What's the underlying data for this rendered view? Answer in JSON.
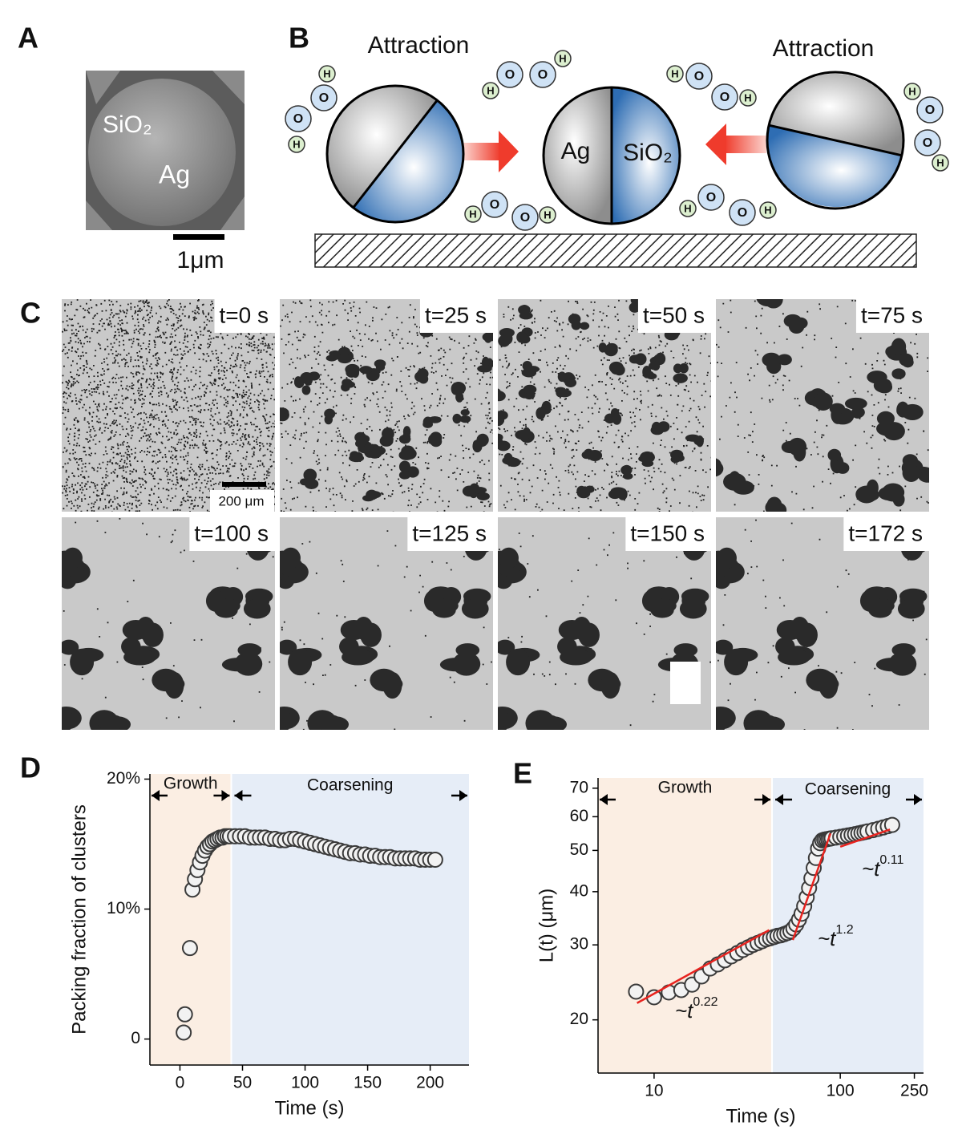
{
  "panel_labels": [
    "A",
    "B",
    "C",
    "D",
    "E"
  ],
  "panel_a": {
    "labels": [
      "SiO₂",
      "Ag"
    ],
    "scale_bar": "1μm"
  },
  "panel_b": {
    "attraction": [
      "Attraction",
      "Attraction"
    ],
    "particle_labels": [
      "Ag",
      "SiO₂"
    ],
    "atoms": {
      "oxygen": "O",
      "hydrogen": "H"
    }
  },
  "panel_c": {
    "times": [
      "t=0 s",
      "t=25 s",
      "t=50 s",
      "t=75 s",
      "t=100 s",
      "t=125 s",
      "t=150 s",
      "t=172 s"
    ],
    "scale_bar": "200 μm"
  },
  "chart_data": [
    {
      "type": "scatter",
      "y_label": "Packing fraction of clusters",
      "x_label": "Time (s)",
      "x": [
        3,
        4,
        8,
        10,
        12,
        14,
        16,
        18,
        20,
        22,
        24,
        26,
        28,
        30,
        32,
        34,
        36,
        38,
        40,
        44,
        48,
        52,
        56,
        60,
        64,
        68,
        72,
        76,
        80,
        84,
        88,
        92,
        96,
        100,
        104,
        108,
        112,
        116,
        120,
        124,
        128,
        132,
        136,
        140,
        144,
        148,
        152,
        156,
        160,
        164,
        168,
        172,
        176,
        180,
        184,
        188,
        192,
        196,
        200,
        204
      ],
      "values": [
        0.5,
        1.9,
        7.0,
        11.5,
        12.3,
        13.0,
        13.6,
        14.1,
        14.5,
        14.8,
        15.0,
        15.2,
        15.3,
        15.4,
        15.5,
        15.5,
        15.6,
        15.6,
        15.6,
        15.6,
        15.6,
        15.6,
        15.5,
        15.5,
        15.5,
        15.5,
        15.4,
        15.4,
        15.3,
        15.3,
        15.4,
        15.4,
        15.3,
        15.2,
        15.1,
        15.0,
        14.9,
        14.8,
        14.7,
        14.6,
        14.5,
        14.4,
        14.3,
        14.3,
        14.2,
        14.2,
        14.1,
        14.1,
        14.0,
        14.0,
        14.0,
        13.9,
        13.9,
        13.9,
        13.9,
        13.9,
        13.8,
        13.8,
        13.8,
        13.8
      ],
      "color": "#3a3a3a",
      "xlim": [
        -24,
        231
      ],
      "ylim": [
        -2,
        20.4
      ],
      "xticks": [
        0,
        50,
        100,
        150,
        200
      ],
      "yticks": [
        0,
        {
          "value": 10,
          "label": "10%"
        },
        {
          "value": 20,
          "label": "20%"
        }
      ],
      "regions": [
        {
          "label": "Growth",
          "color": "#fbeee3"
        },
        {
          "label": "Coarsening",
          "color": "#e6edf7"
        }
      ],
      "boundary": 41
    },
    {
      "type": "scatter",
      "y_label": "L(t) (μm)",
      "x_label": "Time (s)",
      "xscale": "log",
      "yscale": "log",
      "x": [
        8,
        10,
        12,
        14,
        16,
        18,
        20,
        22,
        24,
        26,
        28,
        30,
        32,
        34,
        36,
        38,
        40,
        42,
        44,
        46,
        48,
        50,
        52,
        54,
        56,
        58,
        60,
        62,
        64,
        66,
        68,
        70,
        72,
        74,
        76,
        78,
        80,
        82,
        84,
        86,
        88,
        90,
        95,
        100,
        105,
        110,
        115,
        120,
        125,
        130,
        135,
        140,
        150,
        160,
        170,
        180,
        190
      ],
      "values": [
        23.3,
        22.6,
        23.2,
        23.5,
        24.2,
        25.3,
        26.4,
        27,
        27.6,
        28.2,
        28.7,
        29.2,
        29.6,
        30,
        30.3,
        30.6,
        30.9,
        31.1,
        31.3,
        31.5,
        31.6,
        31.8,
        32,
        32.3,
        32.8,
        33.5,
        34.4,
        35.5,
        37,
        38.8,
        40.8,
        43,
        45.5,
        48,
        50.5,
        52,
        52.8,
        53,
        53.1,
        53.2,
        53.3,
        53.4,
        53.6,
        53.8,
        54,
        54.2,
        54.4,
        54.6,
        54.8,
        55,
        55.2,
        55.4,
        55.8,
        56.2,
        56.6,
        57,
        57.4
      ],
      "color": "#3a3a3a",
      "xlim": [
        5,
        280
      ],
      "ylim": [
        15,
        74
      ],
      "xticks": [
        10,
        100,
        250
      ],
      "yticks": [
        20,
        30,
        40,
        50,
        60,
        70
      ],
      "regions": [
        {
          "label": "Growth",
          "color": "#fbeee3"
        },
        {
          "label": "Coarsening",
          "color": "#e6edf7"
        }
      ],
      "boundary": 43,
      "fit_color": "#e8231f",
      "fits": [
        {
          "x": [
            8.1,
            41.5
          ],
          "y": [
            21.9,
            32.5
          ],
          "label": "~t",
          "exponent": "0.22"
        },
        {
          "x": [
            55.6,
            88.6
          ],
          "y": [
            30.8,
            54.8
          ],
          "label": "~t",
          "exponent": "1.2"
        },
        {
          "x": [
            100,
            185
          ],
          "y": [
            51,
            56
          ],
          "label": "~t",
          "exponent": "0.11"
        }
      ]
    }
  ]
}
